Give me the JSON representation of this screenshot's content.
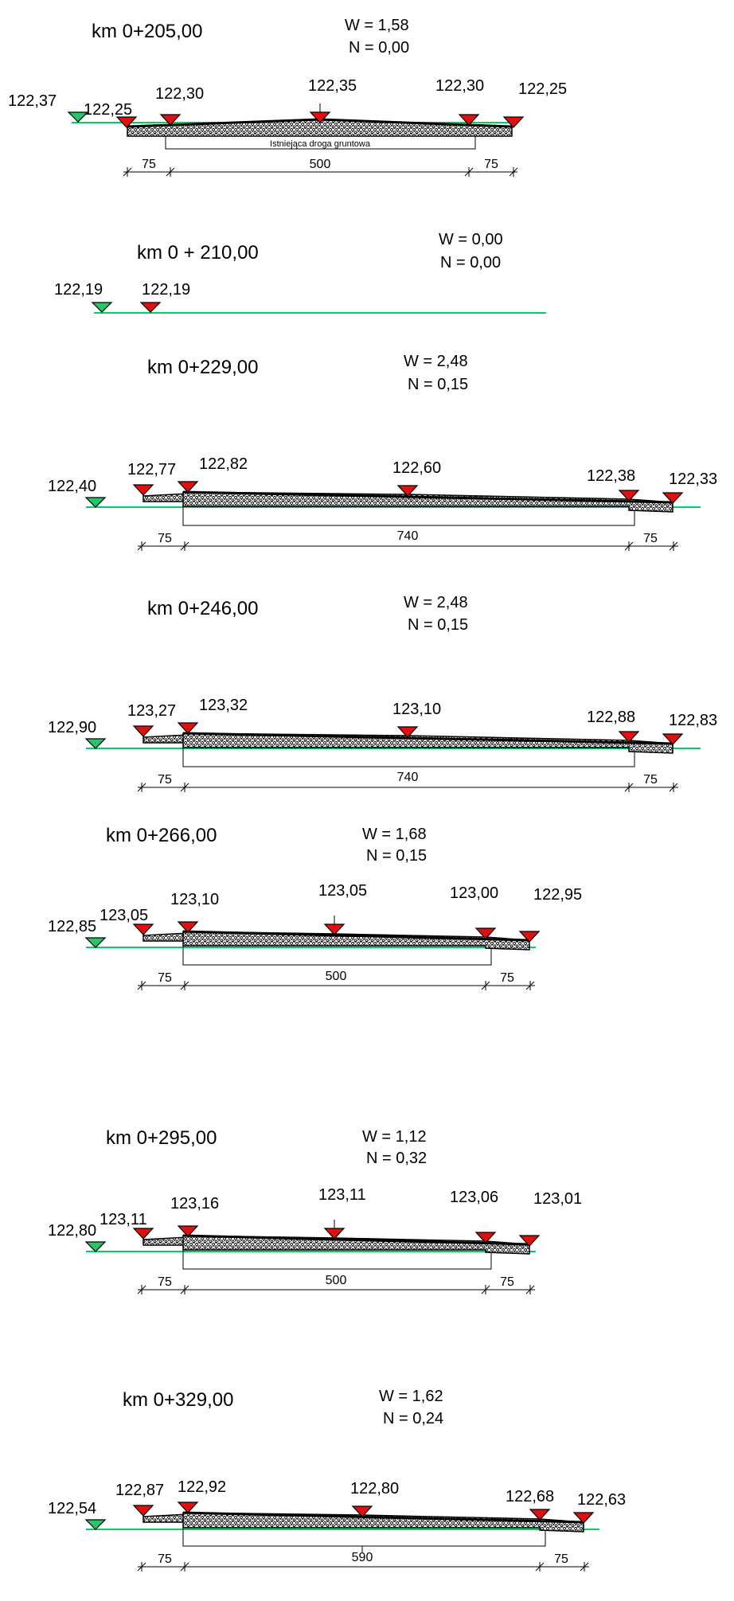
{
  "colors": {
    "ground": "#00d060",
    "existing_marker": "#27c46a",
    "design_marker": "#e01010",
    "outline": "#000000"
  },
  "icons": {
    "existing_marker": "green-triangle-down-icon",
    "design_marker": "red-triangle-down-icon"
  },
  "sections": [
    {
      "km": "km 0+205,00",
      "w": "W =  1,58",
      "n": "N =  0,00",
      "existing_level": "122,37",
      "levels": [
        "122,25",
        "122,30",
        "122,35",
        "122,30",
        "122,25"
      ],
      "dims": [
        "75",
        "500",
        "75"
      ],
      "note": "Istniejąca droga gruntowa"
    },
    {
      "km": "km 0 + 210,00",
      "w": "W = 0,00",
      "n": "N =  0,00",
      "existing_level": "122,19",
      "levels": [
        "122,19"
      ],
      "dims": []
    },
    {
      "km": "km 0+229,00",
      "w": "W =  2,48",
      "n": "N =  0,15",
      "existing_level": "122,40",
      "levels": [
        "122,77",
        "122,82",
        "122,60",
        "122,38",
        "122,33"
      ],
      "dims": [
        "75",
        "740",
        "75"
      ]
    },
    {
      "km": "km 0+246,00",
      "w": "W =  2,48",
      "n": "N =  0,15",
      "existing_level": "122,90",
      "levels": [
        "123,27",
        "123,32",
        "123,10",
        "122,88",
        "122,83"
      ],
      "dims": [
        "75",
        "740",
        "75"
      ]
    },
    {
      "km": "km 0+266,00",
      "w": "W =  1,68",
      "n": "N =  0,15",
      "existing_level": "122,85",
      "levels": [
        "123,05",
        "123,10",
        "123,05",
        "123,00",
        "122,95"
      ],
      "dims": [
        "75",
        "500",
        "75"
      ]
    },
    {
      "km": "km 0+295,00",
      "w": "W =  1,12",
      "n": "N =  0,32",
      "existing_level": "122,80",
      "levels": [
        "123,11",
        "123,16",
        "123,11",
        "123,06",
        "123,01"
      ],
      "dims": [
        "75",
        "500",
        "75"
      ]
    },
    {
      "km": "km 0+329,00",
      "w": "W =  1,62",
      "n": "N =  0,24",
      "existing_level": "122,54",
      "levels": [
        "122,87",
        "122,92",
        "122,80",
        "122,68",
        "122,63"
      ],
      "dims": [
        "75",
        "590",
        "75"
      ]
    }
  ]
}
